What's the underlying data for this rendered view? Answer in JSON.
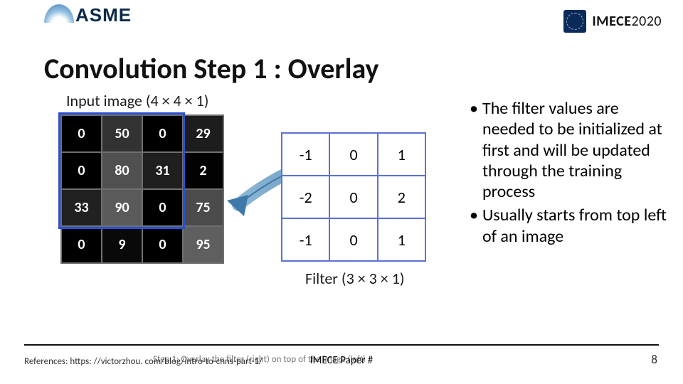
{
  "header": {
    "asme_text": "ASME",
    "imece_text_bold": "IMECE",
    "imece_text_light": "2020"
  },
  "title": "Convolution Step 1 : Overlay",
  "figure": {
    "input_label": "Input image (4 × 4 × 1)",
    "filter_label": "Filter (3 × 3 × 1)",
    "caption": "Step 1: Overlay the filter (right) on top of the image (left)",
    "input_grid": {
      "cols": 4,
      "rows": 4,
      "cells": [
        {
          "v": "0",
          "bg": "#000000"
        },
        {
          "v": "50",
          "bg": "#323232"
        },
        {
          "v": "0",
          "bg": "#000000"
        },
        {
          "v": "29",
          "bg": "#1d1d1d"
        },
        {
          "v": "0",
          "bg": "#000000"
        },
        {
          "v": "80",
          "bg": "#505050"
        },
        {
          "v": "31",
          "bg": "#1f1f1f"
        },
        {
          "v": "2",
          "bg": "#020202"
        },
        {
          "v": "33",
          "bg": "#212121"
        },
        {
          "v": "90",
          "bg": "#5a5a5a"
        },
        {
          "v": "0",
          "bg": "#000000"
        },
        {
          "v": "75",
          "bg": "#4b4b4b"
        },
        {
          "v": "0",
          "bg": "#000000"
        },
        {
          "v": "9",
          "bg": "#090909"
        },
        {
          "v": "0",
          "bg": "#000000"
        },
        {
          "v": "95",
          "bg": "#5f5f5f"
        }
      ],
      "overlay_rows": 3,
      "overlay_cols": 3,
      "overlay_color": "#2a4fd6"
    },
    "filter_grid": {
      "cols": 3,
      "rows": 3,
      "cells": [
        "-1",
        "0",
        "1",
        "-2",
        "0",
        "2",
        "-1",
        "0",
        "1"
      ],
      "border_color": "#5a72d8"
    },
    "arrow": {
      "stroke": "#4a7aa6",
      "fill_grad_start": "#8db7d6",
      "fill_grad_end": "#3e79a8"
    }
  },
  "bullets": [
    "The filter values are needed to be initialized at first and will be updated through the training process",
    "Usually starts from top left of an image"
  ],
  "footer": {
    "references": "References: https: //victorzhou. com/blog/intro-to-cnns-part-1/",
    "paper": "IMECE Paper #",
    "page": "8"
  }
}
